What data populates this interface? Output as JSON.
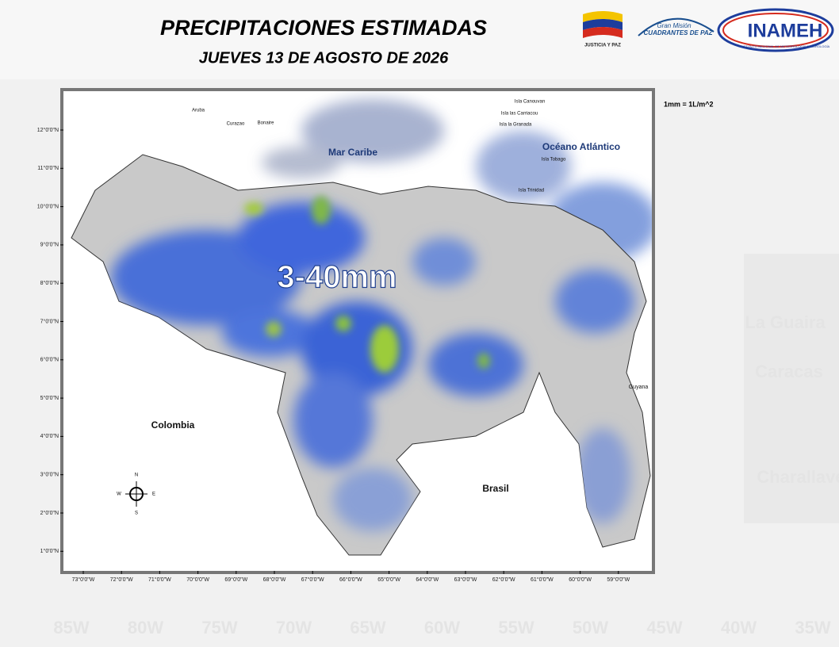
{
  "header": {
    "title": "PRECIPITACIONES ESTIMADAS",
    "subtitle": "JUEVES 13 DE AGOSTO DE 2026"
  },
  "logos": {
    "flag_caption": "JUSTICIA Y PAZ",
    "mission_line1": "Gran Misión",
    "mission_line2": "CUADRANTES DE PAZ",
    "institute": "INAMEH",
    "institute_full": "INSTITUTO NACIONAL DE METEOROLOGÍA E HIDROLOGÍA"
  },
  "map": {
    "unit_note": "1mm = 1L/m^2",
    "range_label": "3-40mm",
    "labels": {
      "sea": "Mar Caribe",
      "ocean": "Océano Atlántico",
      "colombia": "Colombia",
      "brasil": "Brasil",
      "guyana": "Guyana"
    },
    "islands": [
      "Aruba",
      "Curazao",
      "Bonaire",
      "Isla Canouvan",
      "Isla las Carriacou",
      "Isla la Granada",
      "Isla Tobago",
      "Isla Trinidad"
    ],
    "compass": {
      "n": "N",
      "s": "S",
      "e": "E",
      "w": "W"
    },
    "lat_labels": [
      "12°0'0\"N",
      "11°0'0\"N",
      "10°0'0\"N",
      "9°0'0\"N",
      "8°0'0\"N",
      "7°0'0\"N",
      "6°0'0\"N",
      "5°0'0\"N",
      "4°0'0\"N",
      "3°0'0\"N",
      "2°0'0\"N",
      "1°0'0\"N"
    ],
    "lon_labels": [
      "73°0'0\"W",
      "72°0'0\"W",
      "71°0'0\"W",
      "70°0'0\"W",
      "69°0'0\"W",
      "68°0'0\"W",
      "67°0'0\"W",
      "66°0'0\"W",
      "65°0'0\"W",
      "64°0'0\"W",
      "63°0'0\"W",
      "62°0'0\"W",
      "61°0'0\"W",
      "60°0'0\"W",
      "59°0'0\"W"
    ]
  },
  "background": {
    "lon_labels": [
      "85W",
      "80W",
      "75W",
      "70W",
      "65W",
      "60W",
      "55W",
      "50W",
      "45W",
      "40W",
      "35W"
    ],
    "places": [
      "La Guaira",
      "Caracas",
      "Charallave"
    ]
  }
}
